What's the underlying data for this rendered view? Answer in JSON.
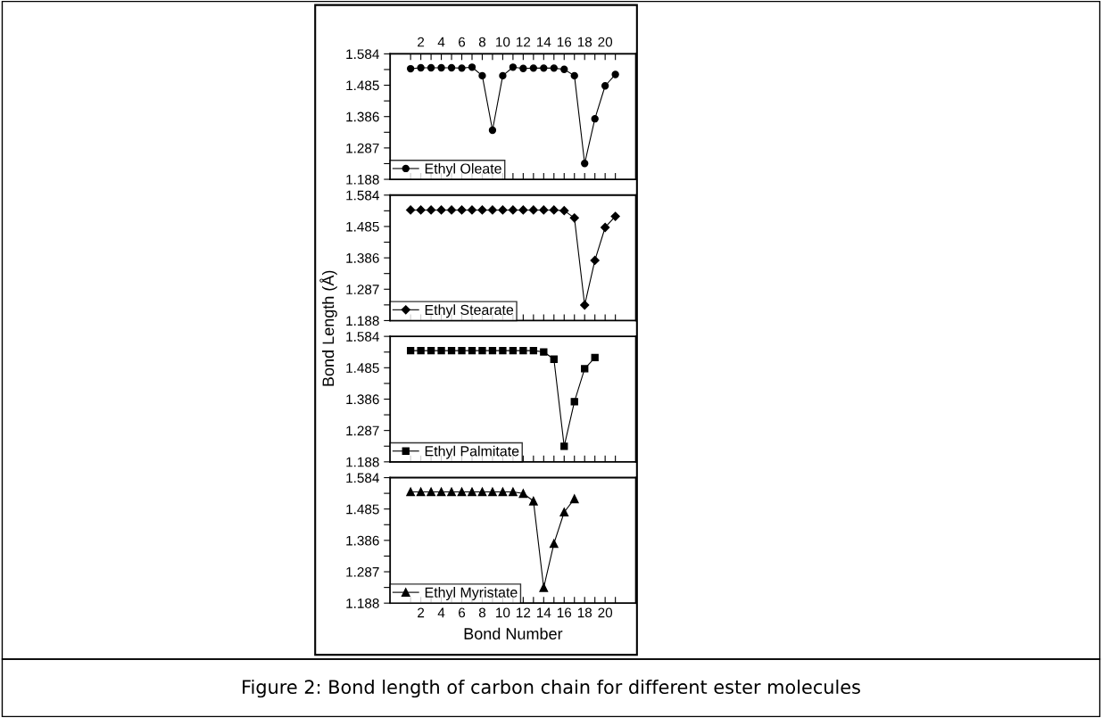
{
  "chart_data": [
    {
      "type": "line",
      "x": [
        1,
        2,
        3,
        4,
        5,
        6,
        7,
        8,
        9,
        10,
        11,
        12,
        13,
        14,
        15,
        16,
        17,
        18,
        19,
        20,
        21
      ],
      "series": [
        {
          "name": "Ethyl Oleate",
          "color": "#000000",
          "values": [
            1.537,
            1.54,
            1.54,
            1.54,
            1.54,
            1.539,
            1.542,
            1.515,
            1.343,
            1.515,
            1.542,
            1.538,
            1.539,
            1.539,
            1.539,
            1.535,
            1.515,
            1.238,
            1.379,
            1.483,
            1.519
          ]
        }
      ],
      "xlim": [
        -1,
        23
      ],
      "xticks": [
        {
          "value": 1,
          "label": null
        },
        {
          "value": 2,
          "label": null
        },
        {
          "value": 3,
          "label": null
        },
        {
          "value": 4,
          "label": null
        },
        {
          "value": 5,
          "label": null
        },
        {
          "value": 6,
          "label": null
        },
        {
          "value": 7,
          "label": null
        },
        {
          "value": 8,
          "label": null
        },
        {
          "value": 9,
          "label": null
        },
        {
          "value": 10,
          "label": null
        },
        {
          "value": 11,
          "label": null
        },
        {
          "value": 12,
          "label": null
        },
        {
          "value": 13,
          "label": null
        },
        {
          "value": 14,
          "label": null
        },
        {
          "value": 15,
          "label": null
        },
        {
          "value": 16,
          "label": null
        },
        {
          "value": 17,
          "label": null
        },
        {
          "value": 18,
          "label": null
        },
        {
          "value": 19,
          "label": null
        },
        {
          "value": 20,
          "label": null
        },
        {
          "value": 21,
          "label": null
        }
      ],
      "x2lim": [
        -1,
        23
      ],
      "x2ticks": [
        {
          "value": 1,
          "label": null
        },
        2,
        {
          "value": 3,
          "label": null
        },
        4,
        {
          "value": 5,
          "label": null
        },
        6,
        {
          "value": 7,
          "label": null
        },
        8,
        {
          "value": 9,
          "label": null
        },
        10,
        {
          "value": 11,
          "label": null
        },
        12,
        {
          "value": 13,
          "label": null
        },
        14,
        {
          "value": 15,
          "label": null
        },
        16,
        {
          "value": 17,
          "label": null
        },
        18,
        {
          "value": 19,
          "label": null
        },
        20,
        {
          "value": 21,
          "label": null
        }
      ],
      "ylim": [
        1.188,
        1.584
      ],
      "yticks": [
        1.188,
        {
          "value": 1.2375,
          "label": null
        },
        1.287,
        {
          "value": 1.3365,
          "label": null
        },
        1.386,
        {
          "value": 1.4355,
          "label": null
        },
        1.485,
        {
          "value": 1.5345,
          "label": null
        },
        1.584
      ],
      "tick_labels": "y",
      "legend": "bottom left",
      "marker": "circle",
      "line_style": "solid",
      "grid": false
    },
    {
      "type": "line",
      "x": [
        1,
        2,
        3,
        4,
        5,
        6,
        7,
        8,
        9,
        10,
        11,
        12,
        13,
        14,
        15,
        16,
        17,
        18,
        19,
        20,
        21
      ],
      "series": [
        {
          "name": "Ethyl Stearate",
          "color": "#000000",
          "values": [
            1.537,
            1.537,
            1.537,
            1.537,
            1.537,
            1.537,
            1.537,
            1.537,
            1.537,
            1.537,
            1.537,
            1.537,
            1.537,
            1.537,
            1.537,
            1.535,
            1.512,
            1.237,
            1.378,
            1.482,
            1.517
          ]
        }
      ],
      "ylabel": "Bond Length (Å)",
      "xlim": [
        -1,
        23
      ],
      "xticks": [
        {
          "value": 1,
          "label": null
        },
        {
          "value": 2,
          "label": null
        },
        {
          "value": 3,
          "label": null
        },
        {
          "value": 4,
          "label": null
        },
        {
          "value": 5,
          "label": null
        },
        {
          "value": 6,
          "label": null
        },
        {
          "value": 7,
          "label": null
        },
        {
          "value": 8,
          "label": null
        },
        {
          "value": 9,
          "label": null
        },
        {
          "value": 10,
          "label": null
        },
        {
          "value": 11,
          "label": null
        },
        {
          "value": 12,
          "label": null
        },
        {
          "value": 13,
          "label": null
        },
        {
          "value": 14,
          "label": null
        },
        {
          "value": 15,
          "label": null
        },
        {
          "value": 16,
          "label": null
        },
        {
          "value": 17,
          "label": null
        },
        {
          "value": 18,
          "label": null
        },
        {
          "value": 19,
          "label": null
        },
        {
          "value": 20,
          "label": null
        },
        {
          "value": 21,
          "label": null
        }
      ],
      "ylim": [
        1.188,
        1.584
      ],
      "yticks": [
        1.188,
        {
          "value": 1.2375,
          "label": null
        },
        1.287,
        {
          "value": 1.3365,
          "label": null
        },
        1.386,
        {
          "value": 1.4355,
          "label": null
        },
        1.485,
        {
          "value": 1.5345,
          "label": null
        },
        1.584
      ],
      "tick_labels": "y",
      "legend": "bottom left",
      "marker": "diamond",
      "line_style": "solid",
      "grid": false
    },
    {
      "type": "line",
      "x": [
        1,
        2,
        3,
        4,
        5,
        6,
        7,
        8,
        9,
        10,
        11,
        12,
        13,
        14,
        15,
        16,
        17,
        18,
        19
      ],
      "series": [
        {
          "name": "Ethyl Palmitate",
          "color": "#000000",
          "values": [
            1.539,
            1.539,
            1.539,
            1.539,
            1.539,
            1.539,
            1.539,
            1.539,
            1.539,
            1.539,
            1.539,
            1.539,
            1.539,
            1.535,
            1.512,
            1.237,
            1.378,
            1.482,
            1.517
          ]
        }
      ],
      "xlim": [
        -1,
        23
      ],
      "xticks": [
        {
          "value": 1,
          "label": null
        },
        {
          "value": 2,
          "label": null
        },
        {
          "value": 3,
          "label": null
        },
        {
          "value": 4,
          "label": null
        },
        {
          "value": 5,
          "label": null
        },
        {
          "value": 6,
          "label": null
        },
        {
          "value": 7,
          "label": null
        },
        {
          "value": 8,
          "label": null
        },
        {
          "value": 9,
          "label": null
        },
        {
          "value": 10,
          "label": null
        },
        {
          "value": 11,
          "label": null
        },
        {
          "value": 12,
          "label": null
        },
        {
          "value": 13,
          "label": null
        },
        {
          "value": 14,
          "label": null
        },
        {
          "value": 15,
          "label": null
        },
        {
          "value": 16,
          "label": null
        },
        {
          "value": 17,
          "label": null
        },
        {
          "value": 18,
          "label": null
        },
        {
          "value": 19,
          "label": null
        },
        {
          "value": 20,
          "label": null
        },
        {
          "value": 21,
          "label": null
        }
      ],
      "ylim": [
        1.188,
        1.584
      ],
      "yticks": [
        1.188,
        {
          "value": 1.2375,
          "label": null
        },
        1.287,
        {
          "value": 1.3365,
          "label": null
        },
        1.386,
        {
          "value": 1.4355,
          "label": null
        },
        1.485,
        {
          "value": 1.5345,
          "label": null
        },
        1.584
      ],
      "tick_labels": "y",
      "legend": "bottom left",
      "marker": "square",
      "line_style": "solid",
      "grid": false
    },
    {
      "type": "line",
      "x": [
        1,
        2,
        3,
        4,
        5,
        6,
        7,
        8,
        9,
        10,
        11,
        12,
        13,
        14,
        15,
        16,
        17
      ],
      "series": [
        {
          "name": "Ethyl Myristate",
          "color": "#000000",
          "values": [
            1.539,
            1.539,
            1.539,
            1.539,
            1.539,
            1.539,
            1.539,
            1.539,
            1.539,
            1.539,
            1.539,
            1.534,
            1.51,
            1.237,
            1.376,
            1.475,
            1.517
          ]
        }
      ],
      "xlabel": "Bond Number",
      "annotations": [
        "Figure 2: Bond length of carbon chain for different ester molecules"
      ],
      "xlim": [
        -1,
        23
      ],
      "xticks": [
        {
          "value": 1,
          "label": null
        },
        2,
        {
          "value": 3,
          "label": null
        },
        4,
        {
          "value": 5,
          "label": null
        },
        6,
        {
          "value": 7,
          "label": null
        },
        8,
        {
          "value": 9,
          "label": null
        },
        10,
        {
          "value": 11,
          "label": null
        },
        12,
        {
          "value": 13,
          "label": null
        },
        14,
        {
          "value": 15,
          "label": null
        },
        16,
        {
          "value": 17,
          "label": null
        },
        18,
        {
          "value": 19,
          "label": null
        },
        20,
        {
          "value": 21,
          "label": null
        }
      ],
      "ylim": [
        1.188,
        1.584
      ],
      "yticks": [
        1.188,
        {
          "value": 1.2375,
          "label": null
        },
        1.287,
        {
          "value": 1.3365,
          "label": null
        },
        1.386,
        {
          "value": 1.4355,
          "label": null
        },
        1.485,
        {
          "value": 1.5345,
          "label": null
        },
        1.584
      ],
      "legend": "bottom left",
      "marker": "triangle",
      "line_style": "solid",
      "grid": false
    }
  ]
}
